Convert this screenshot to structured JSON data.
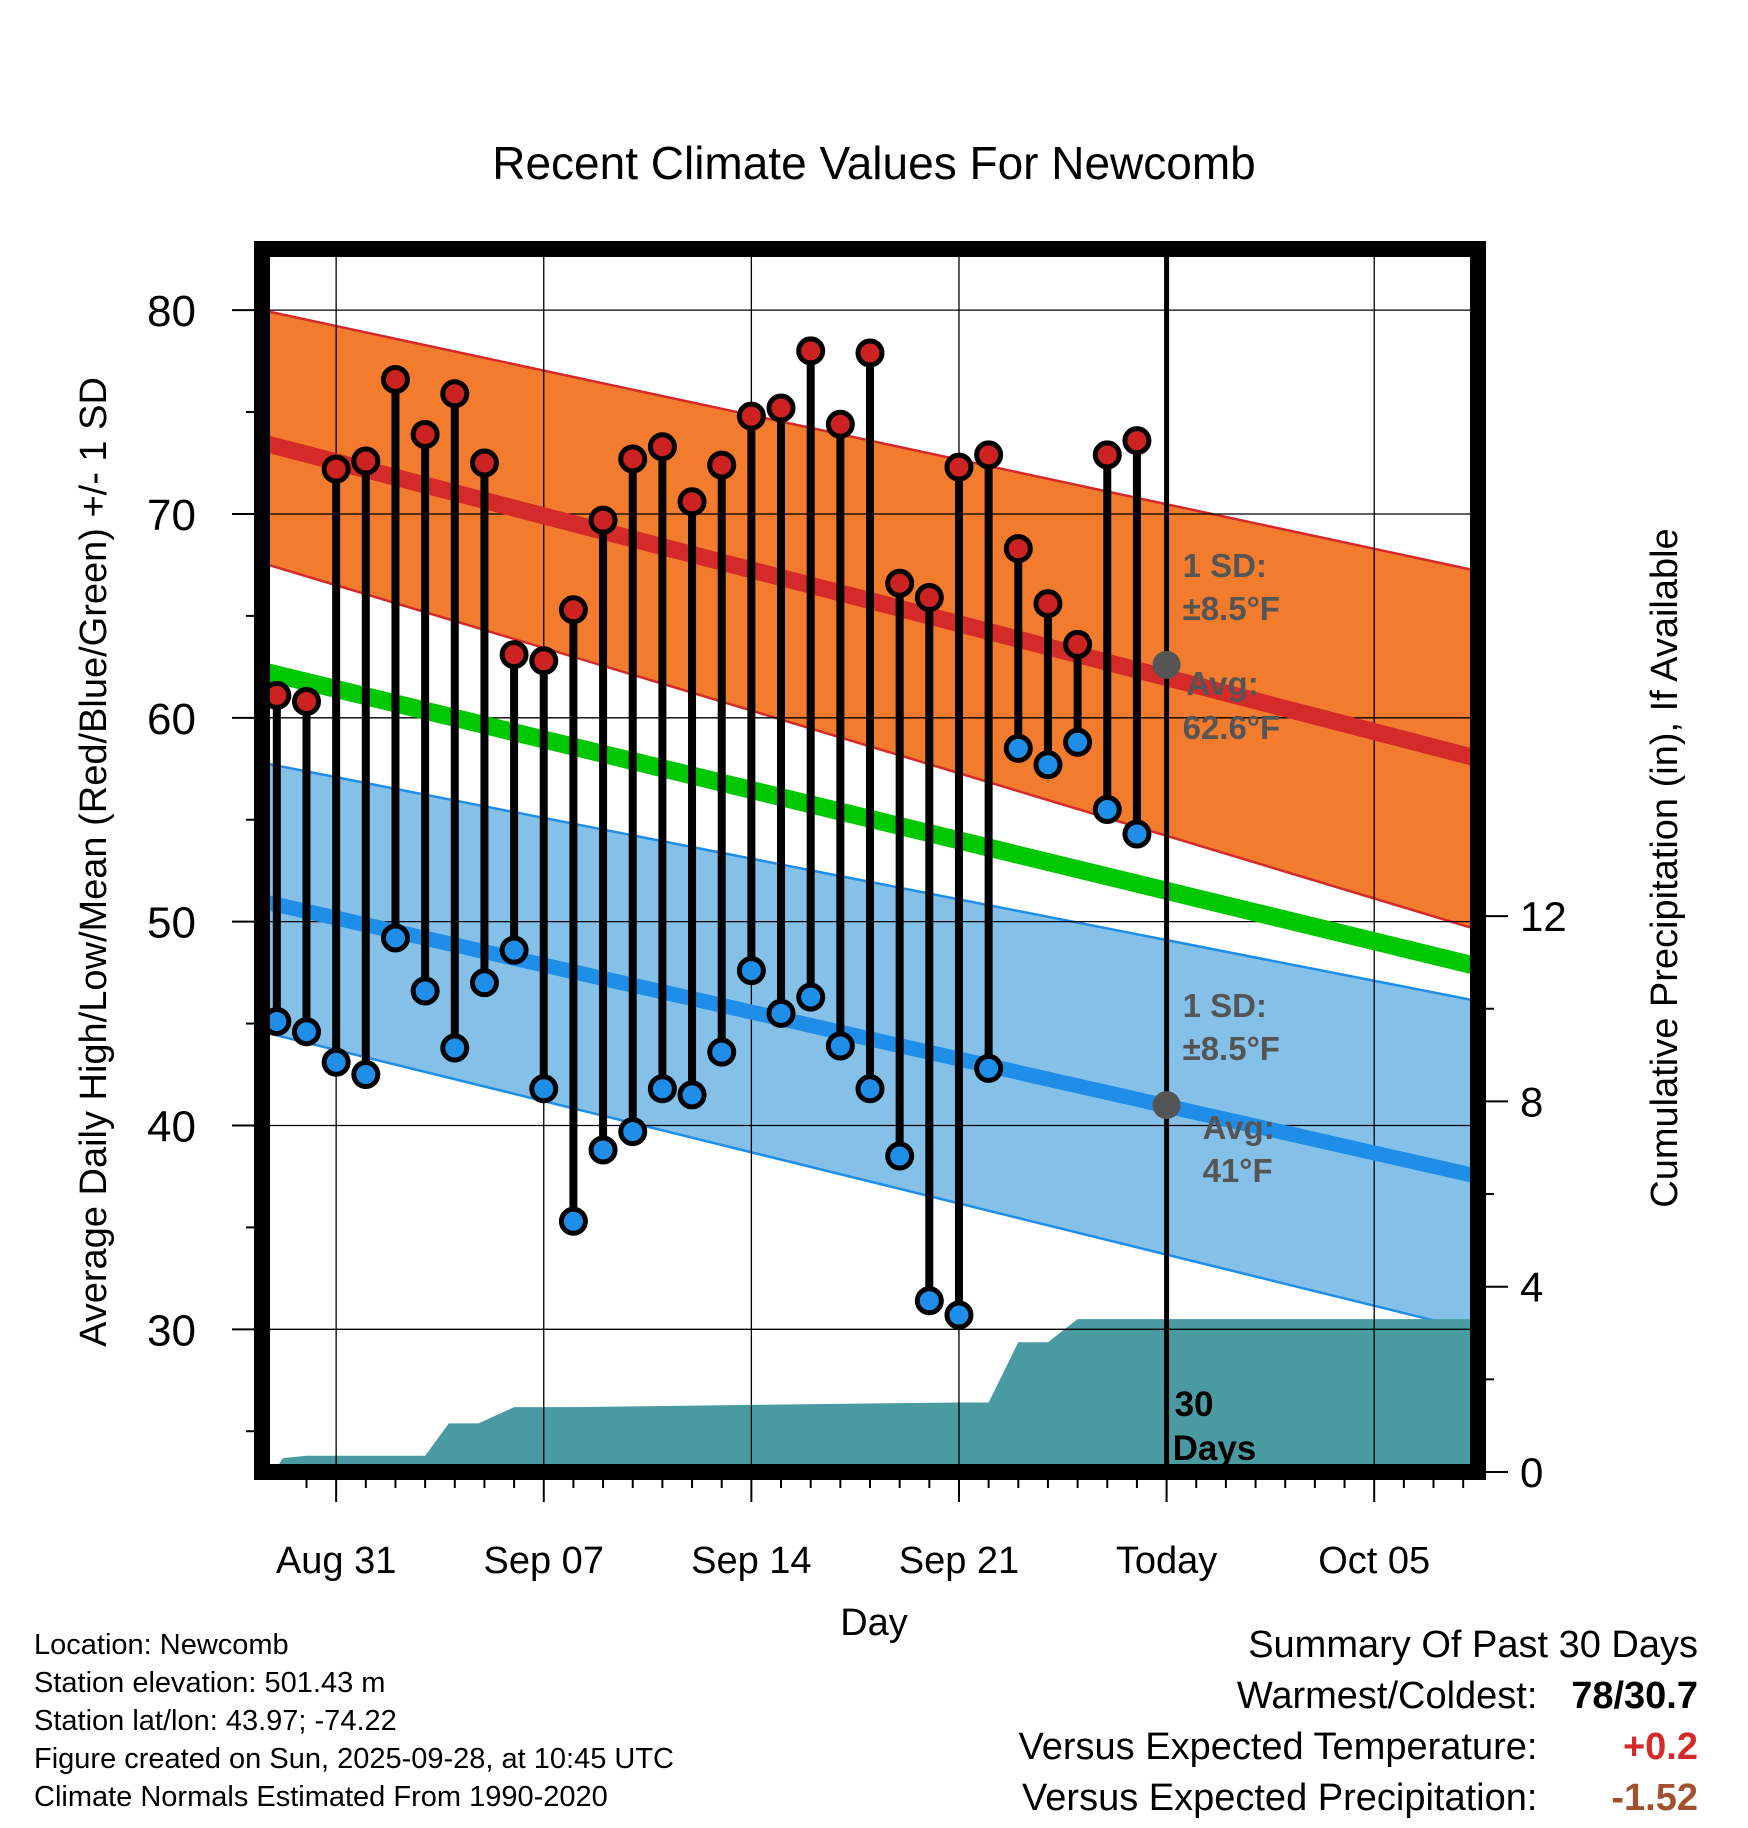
{
  "chart_data": {
    "type": "line",
    "title": "Recent Climate Values For Newcomb",
    "xlabel": "Day",
    "ylabel": "Average Daily High/Low/Mean (Red/Blue/Green) +/- 1 SD",
    "y2label": "Cumulative Precipitation (in), If Available",
    "xlim": [
      -2.5,
      38.5
    ],
    "ylim": [
      23,
      83
    ],
    "y2lim": [
      0,
      26.4
    ],
    "x_ticks": [
      {
        "x": 0,
        "label": "Aug 31"
      },
      {
        "x": 7,
        "label": "Sep 07"
      },
      {
        "x": 14,
        "label": "Sep 14"
      },
      {
        "x": 21,
        "label": "Sep 21"
      },
      {
        "x": 28,
        "label": "Today"
      },
      {
        "x": 35,
        "label": "Oct 05"
      }
    ],
    "y_ticks": [
      30,
      40,
      50,
      60,
      70,
      80
    ],
    "y2_ticks": [
      0,
      4,
      8,
      12
    ],
    "normal_high": {
      "x": [
        -2.5,
        38.5
      ],
      "values": [
        73.5,
        58.0
      ]
    },
    "normal_high_band": {
      "x": [
        -2.5,
        38.5
      ],
      "upper": [
        80.0,
        67.2
      ],
      "lower": [
        67.6,
        49.6
      ]
    },
    "normal_mean": {
      "x": [
        -2.5,
        38.5
      ],
      "values": [
        62.3,
        47.8
      ]
    },
    "normal_low": {
      "x": [
        -2.5,
        38.5
      ],
      "values": [
        51.0,
        37.5
      ]
    },
    "normal_low_band": {
      "x": [
        -2.5,
        38.5
      ],
      "upper": [
        57.8,
        46.1
      ],
      "lower": [
        44.6,
        29.9
      ]
    },
    "series": [
      {
        "name": "Daily High",
        "color": "#cc2222",
        "x": [
          -2,
          -1,
          0,
          1,
          2,
          3,
          4,
          5,
          6,
          7,
          8,
          9,
          10,
          11,
          12,
          13,
          14,
          15,
          16,
          17,
          18,
          19,
          20,
          21,
          22,
          23,
          24,
          25,
          26,
          27
        ],
        "values": [
          61.1,
          60.8,
          72.2,
          72.6,
          76.6,
          73.9,
          75.9,
          72.5,
          63.1,
          62.8,
          65.3,
          69.7,
          72.7,
          73.3,
          70.6,
          72.4,
          74.8,
          75.2,
          78.0,
          74.4,
          77.9,
          66.6,
          65.9,
          72.3,
          72.9,
          68.3,
          65.6,
          63.6,
          72.9,
          73.6
        ]
      },
      {
        "name": "Daily Low",
        "color": "#1e8ee8",
        "x": [
          -2,
          -1,
          0,
          1,
          2,
          3,
          4,
          5,
          6,
          7,
          8,
          9,
          10,
          11,
          12,
          13,
          14,
          15,
          16,
          17,
          18,
          19,
          20,
          21,
          22,
          23,
          24,
          25,
          26,
          27
        ],
        "values": [
          45.1,
          44.6,
          43.1,
          42.5,
          49.2,
          46.6,
          43.8,
          47.0,
          48.6,
          41.8,
          35.3,
          38.8,
          39.7,
          41.8,
          41.5,
          43.6,
          47.6,
          45.5,
          46.3,
          43.9,
          41.8,
          38.5,
          31.4,
          30.7,
          42.8,
          58.5,
          57.7,
          58.8,
          55.5,
          54.3
        ]
      }
    ],
    "precipitation": {
      "x": [
        -2.5,
        -2,
        -1.8,
        -1,
        0,
        1,
        2,
        3,
        3.8,
        4,
        4.8,
        6,
        7,
        8,
        14,
        21,
        22,
        23,
        24,
        25,
        26,
        38.5
      ],
      "values": [
        0,
        0.1,
        0.3,
        0.35,
        0.35,
        0.35,
        0.35,
        0.35,
        1.05,
        1.05,
        1.05,
        1.4,
        1.4,
        1.4,
        1.45,
        1.5,
        1.5,
        2.8,
        2.8,
        3.3,
        3.3,
        3.3
      ]
    },
    "today_x": 28,
    "annotations": {
      "high_sd_line1": "1 SD:",
      "high_sd_line2": "±8.5°F",
      "high_avg_line1": "Avg:",
      "high_avg_line2": "62.6°F",
      "high_avg_value": 62.6,
      "low_sd_line1": "1 SD:",
      "low_sd_line2": "±8.5°F",
      "low_avg_line1": "Avg:",
      "low_avg_line2": "41°F",
      "low_avg_value": 41,
      "days_line1": "30",
      "days_line2": "Days"
    },
    "colors": {
      "high_band": "#f27b2e",
      "high_line": "#d42a2a",
      "mean_line": "#00c800",
      "low_band": "#84c0e8",
      "low_line": "#1e8ee8",
      "precip": "#4a9aa2",
      "annotation": "#555555"
    }
  },
  "footer": {
    "location": "Location: Newcomb",
    "elevation": "Station elevation: 501.43 m",
    "latlon": "Station lat/lon: 43.97; -74.22",
    "created": "Figure created on Sun, 2025-09-28, at 10:45 UTC",
    "normals": "Climate Normals Estimated From 1990-2020"
  },
  "summary": {
    "title": "Summary Of Past 30 Days",
    "warmest_label": "Warmest/Coldest:",
    "warmest_value": "78/30.7",
    "temp_label": "Versus Expected Temperature:",
    "temp_value": "+0.2",
    "temp_color": "#d42a2a",
    "precip_label": "Versus Expected Precipitation:",
    "precip_value": "-1.52",
    "precip_color": "#a0522d"
  }
}
